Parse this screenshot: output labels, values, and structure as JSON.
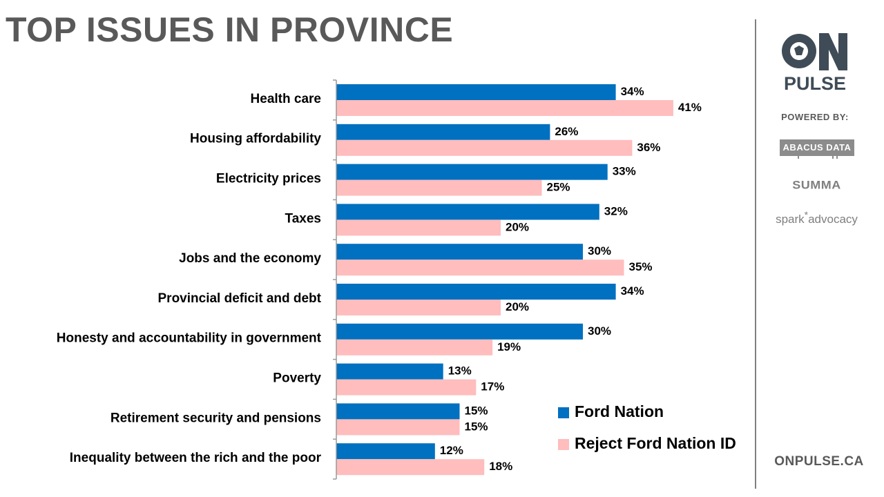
{
  "title": "TOP ISSUES IN PROVINCE",
  "colors": {
    "ford_nation": "#0070C0",
    "reject": "#FFBDBD",
    "title": "#595959",
    "axis": "#999999"
  },
  "chart_data": {
    "type": "bar",
    "orientation": "horizontal",
    "title": "TOP ISSUES IN PROVINCE",
    "categories": [
      "Health care",
      "Housing affordability",
      "Electricity prices",
      "Taxes",
      "Jobs and the economy",
      "Provincial deficit and debt",
      "Honesty and accountability in government",
      "Poverty",
      "Retirement security and pensions",
      "Inequality between the rich and the poor"
    ],
    "series": [
      {
        "name": "Ford Nation",
        "color": "#0070C0",
        "values": [
          34,
          26,
          33,
          32,
          30,
          34,
          30,
          13,
          15,
          12
        ]
      },
      {
        "name": "Reject Ford Nation ID",
        "color": "#FFBDBD",
        "values": [
          41,
          36,
          25,
          20,
          35,
          20,
          19,
          17,
          15,
          18
        ]
      }
    ],
    "value_suffix": "%",
    "xlim": [
      0,
      50
    ],
    "grid": false,
    "legend_position": "bottom-right"
  },
  "sidebar": {
    "logo_on": "ON",
    "logo_pulse": "PULSE",
    "powered_by": "POWERED BY:",
    "partner_abacus": "ABACUS DATA",
    "partner_summa": "SUMMA",
    "partner_spark_1": "spark",
    "partner_spark_star": "*",
    "partner_spark_2": "advocacy",
    "website": "ONPULSE.CA"
  }
}
